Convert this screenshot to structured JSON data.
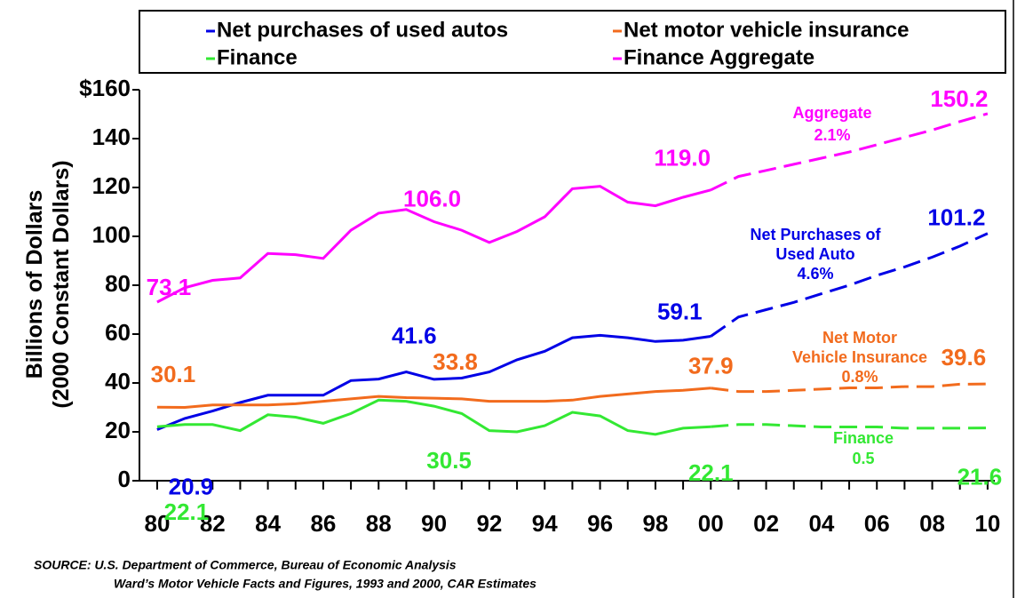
{
  "chart_data": {
    "type": "line",
    "x": [
      1980,
      1981,
      1982,
      1983,
      1984,
      1985,
      1986,
      1987,
      1988,
      1989,
      1990,
      1991,
      1992,
      1993,
      1994,
      1995,
      1996,
      1997,
      1998,
      1999,
      2000,
      2001,
      2002,
      2003,
      2004,
      2005,
      2006,
      2007,
      2008,
      2009,
      2010
    ],
    "projection_from": 2000,
    "xlim": [
      1979.36,
      2010.26
    ],
    "xticks": [
      {
        "value": 1980,
        "label": "80"
      },
      {
        "value": 1982,
        "label": "82"
      },
      {
        "value": 1984,
        "label": "84"
      },
      {
        "value": 1986,
        "label": "86"
      },
      {
        "value": 1988,
        "label": "88"
      },
      {
        "value": 1990,
        "label": "90"
      },
      {
        "value": 1992,
        "label": "92"
      },
      {
        "value": 1994,
        "label": "94"
      },
      {
        "value": 1996,
        "label": "96"
      },
      {
        "value": 1998,
        "label": "98"
      },
      {
        "value": 2000,
        "label": "00"
      },
      {
        "value": 2002,
        "label": "02"
      },
      {
        "value": 2004,
        "label": "04"
      },
      {
        "value": 2006,
        "label": "06"
      },
      {
        "value": 2008,
        "label": "08"
      },
      {
        "value": 2010,
        "label": "10"
      }
    ],
    "xticks_minor": [
      1981,
      1983,
      1985,
      1987,
      1989,
      1991,
      1993,
      1995,
      1997,
      1999,
      2001,
      2003,
      2005,
      2007,
      2009
    ],
    "ylim": [
      0,
      160
    ],
    "yticks": [
      0,
      20,
      40,
      60,
      80,
      100,
      120,
      140,
      {
        "value": 160,
        "label": "$160"
      }
    ],
    "ylabel": [
      "Billions of Dollars",
      "(2000 Constant Dollars)"
    ],
    "series": [
      {
        "name": "Net purchases of used autos",
        "color": "#0000e6",
        "values": [
          20.9,
          25.5,
          28.5,
          32,
          35,
          35,
          35,
          41,
          41.6,
          44.5,
          41.5,
          42,
          44.5,
          49.5,
          53,
          58.5,
          59.5,
          58.5,
          57,
          57.5,
          59.1,
          67,
          70,
          73,
          76.5,
          80,
          84,
          87.5,
          91.5,
          96,
          101.2
        ],
        "value_labels": [
          "20.9",
          null,
          null,
          null,
          null,
          null,
          null,
          null,
          "41.6",
          null,
          null,
          null,
          null,
          null,
          null,
          null,
          null,
          null,
          null,
          null,
          "59.1",
          null,
          null,
          null,
          null,
          null,
          null,
          null,
          null,
          null,
          "101.2"
        ]
      },
      {
        "name": "Net motor vehicle insurance",
        "color": "#f26b1d",
        "values": [
          30.1,
          30,
          31,
          31,
          31,
          31.5,
          32.5,
          33.5,
          34.5,
          34,
          33.8,
          33.5,
          32.5,
          32.5,
          32.5,
          33,
          34.5,
          35.5,
          36.5,
          37,
          37.9,
          36.5,
          36.5,
          37,
          37.5,
          38,
          38,
          38.5,
          38.5,
          39.5,
          39.6
        ],
        "value_labels": [
          "30.1",
          null,
          null,
          null,
          null,
          null,
          null,
          null,
          null,
          null,
          "33.8",
          null,
          null,
          null,
          null,
          null,
          null,
          null,
          null,
          null,
          "37.9",
          null,
          null,
          null,
          null,
          null,
          null,
          null,
          null,
          null,
          "39.6"
        ]
      },
      {
        "name": "Finance",
        "color": "#33e833",
        "values": [
          22.1,
          23,
          23,
          20.5,
          27,
          26,
          23.5,
          27.5,
          33,
          32.5,
          30.5,
          27.5,
          20.5,
          20,
          22.5,
          28,
          26.5,
          20.5,
          19,
          21.5,
          22.1,
          23,
          23,
          22.5,
          22,
          22,
          22,
          21.5,
          21.5,
          21.5,
          21.6
        ],
        "value_labels": [
          "22.1",
          null,
          null,
          null,
          null,
          null,
          null,
          null,
          null,
          null,
          "30.5",
          null,
          null,
          null,
          null,
          null,
          null,
          null,
          null,
          null,
          "22.1",
          null,
          null,
          null,
          null,
          null,
          null,
          null,
          null,
          null,
          "21.6"
        ]
      },
      {
        "name": "Finance Aggregate",
        "color": "#ff00ff",
        "values": [
          73.1,
          79,
          82,
          83,
          93,
          92.5,
          91,
          102.5,
          109.5,
          111,
          106,
          102.5,
          97.5,
          102,
          108,
          119.5,
          120.5,
          114,
          112.5,
          116,
          119,
          124.5,
          127,
          129.5,
          132,
          134.5,
          137.5,
          140.5,
          143.5,
          147,
          150.2
        ],
        "value_labels": [
          "73.1",
          null,
          null,
          null,
          null,
          null,
          null,
          null,
          null,
          null,
          "106.0",
          null,
          null,
          null,
          null,
          null,
          null,
          null,
          null,
          null,
          "119.0",
          null,
          null,
          null,
          null,
          null,
          null,
          null,
          null,
          null,
          "150.2"
        ]
      }
    ],
    "annotations": [
      {
        "series": 3,
        "lines": [
          "Aggregate",
          "2.1%"
        ]
      },
      {
        "series": 0,
        "lines": [
          "Net Purchases of",
          "Used Auto",
          "4.6%"
        ]
      },
      {
        "series": 1,
        "lines": [
          "Net Motor",
          "Vehicle Insurance",
          "0.8%"
        ]
      },
      {
        "series": 2,
        "lines": [
          "Finance",
          "0.5"
        ]
      }
    ],
    "source": [
      "SOURCE:  U.S. Department of Commerce, Bureau of Economic Analysis",
      "Ward’s Motor Vehicle Facts and Figures, 1993 and 2000, CAR Estimates"
    ]
  }
}
